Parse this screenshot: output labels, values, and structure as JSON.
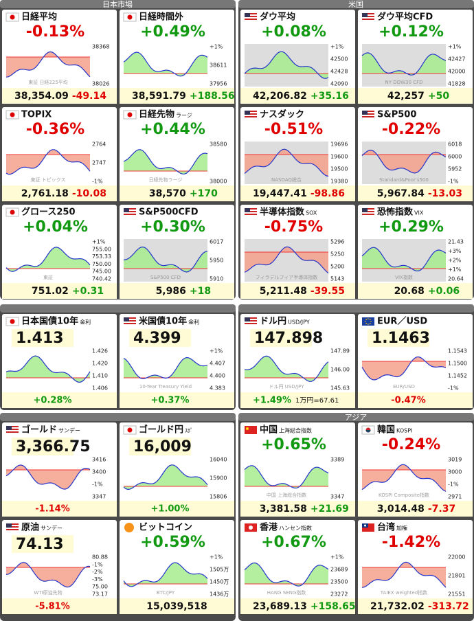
{
  "panels": [
    {
      "title": "日本市場",
      "tiles": [
        {
          "flag": "jp",
          "name": "日経平均",
          "change": "-0.13%",
          "price": "38,354.09",
          "diff": "-49.14",
          "labels": [
            "38368",
            "38026"
          ],
          "mark": "東証 日経225平均"
        },
        {
          "flag": "jp",
          "name": "日経時間外",
          "change": "+0.49%",
          "price": "38,591.79",
          "diff": "+188.56",
          "labels": [
            "+1%",
            "38611",
            "37956"
          ]
        },
        {
          "flag": "jp",
          "name": "TOPIX",
          "change": "-0.36%",
          "price": "2,761.18",
          "diff": "-10.08",
          "labels": [
            "2764",
            "2747",
            "-1%"
          ],
          "mark": "東証 トピックス"
        },
        {
          "flag": "jp",
          "name": "日経先物",
          "sub": "ラージ",
          "change": "+0.44%",
          "price": "38,570",
          "diff": "+170",
          "labels": [
            "38580",
            "38000"
          ],
          "mark": "日経先物ラージ"
        },
        {
          "flag": "jp",
          "name": "グロース250",
          "change": "+0.04%",
          "price": "751.02",
          "diff": "+0.31",
          "labels": [
            "+1%",
            "755.00",
            "753.33",
            "750.00",
            "745.00",
            "740.42"
          ],
          "mark": "東証"
        },
        {
          "flag": "us",
          "name": "S&P500CFD",
          "change": "+0.30%",
          "price": "5,986",
          "diff": "+18",
          "labels": [
            "6017",
            "5950",
            "5910"
          ],
          "mark": "S&P500 CFD"
        }
      ]
    },
    {
      "title": "米国",
      "tiles": [
        {
          "flag": "us",
          "name": "ダウ平均",
          "change": "+0.08%",
          "price": "42,206.82",
          "diff": "+35.16",
          "labels": [
            "+1%",
            "42500",
            "42428",
            "42090"
          ]
        },
        {
          "flag": "us",
          "name": "ダウ平均CFD",
          "change": "+0.12%",
          "price": "42,257",
          "diff": "+50",
          "labels": [
            "+1%",
            "42427",
            "42000",
            "41828"
          ],
          "mark": "NY DOW30 CFD"
        },
        {
          "flag": "us",
          "name": "ナスダック",
          "change": "-0.51%",
          "price": "19,447.41",
          "diff": "-98.86",
          "labels": [
            "19696",
            "19600",
            "19500",
            "19380"
          ],
          "mark": "NASDAQ総合"
        },
        {
          "flag": "us",
          "name": "S&P500",
          "change": "-0.22%",
          "price": "5,967.84",
          "diff": "-13.03",
          "labels": [
            "6018",
            "6000",
            "5952",
            "-1%"
          ],
          "mark": "Standard&Poor's500"
        },
        {
          "flag": "us",
          "name": "半導体指数",
          "sub": "SOX",
          "change": "-0.75%",
          "price": "5,211.48",
          "diff": "-39.55",
          "labels": [
            "5296",
            "5250",
            "5200",
            "5143"
          ],
          "mark": "フィラデルフィア半導体指数"
        },
        {
          "flag": "us",
          "name": "恐怖指数",
          "sub": "VIX",
          "change": "+0.29%",
          "price": "20.68",
          "diff": "+0.06",
          "labels": [
            "21.43",
            "+3%",
            "+2%",
            "+1%",
            "20.64"
          ],
          "mark": "VIX指数"
        }
      ]
    },
    {
      "tiles": [
        {
          "flag": "jp",
          "name": "日本国債10年",
          "sub": "金利",
          "value": "1.413",
          "change": "+0.28%",
          "labels": [
            "1.426",
            "1.420",
            "1.410",
            "1.406"
          ]
        },
        {
          "flag": "us",
          "name": "米国債10年",
          "sub": "金利",
          "value": "4.399",
          "change": "+0.37%",
          "labels": [
            "+1%",
            "4.407",
            "4.400",
            "4.383"
          ],
          "mark": "10-Year Treasury Yield"
        }
      ]
    },
    {
      "tiles": [
        {
          "flag": "us",
          "name": "ドル円",
          "sub": "USD/JPY",
          "value": "147.898",
          "change": "+1.49%",
          "note": "1万円=67.61",
          "labels": [
            "147.89",
            "146.00",
            "145.63"
          ],
          "mark": "ドル円 USD/JPY"
        },
        {
          "flag": "eu",
          "name": "EUR／USD",
          "value": "1.1463",
          "change": "-0.47%",
          "labels": [
            "1.1543",
            "1.1500",
            "1.1452",
            "-1%"
          ],
          "mark": "EUR/USD"
        }
      ]
    },
    {
      "tiles": [
        {
          "flag": "us",
          "name": "ゴールド",
          "sub": "サンデー",
          "value": "3,366.75",
          "change": "-1.14%",
          "labels": [
            "3416",
            "3400",
            "-1%",
            "3347"
          ]
        },
        {
          "flag": "jp",
          "name": "ゴールド円",
          "sub": "ｽﾎﾟ",
          "value": "16,009",
          "change": "+1.00%",
          "labels": [
            "16040",
            "15900",
            "15806"
          ]
        },
        {
          "flag": "us",
          "name": "原油",
          "sub": "サンデー",
          "value": "74.13",
          "change": "-5.81%",
          "labels": [
            "80.88",
            "-1%",
            "-2%",
            "-3%",
            "75.00",
            "73.17"
          ],
          "mark": "WTI原油先物"
        },
        {
          "flag": "btc",
          "name": "ビットコイン",
          "change": "+0.59%",
          "price": "15,039,518",
          "labels": [
            "+1%",
            "1505万",
            "1450万",
            "1436万"
          ],
          "mark": "BTC/JPY"
        }
      ]
    },
    {
      "title": "アジア",
      "tiles": [
        {
          "flag": "cn",
          "name": "中国",
          "sub": "上海総合指数",
          "change": "+0.65%",
          "price": "3,381.58",
          "diff": "+21.69",
          "labels": [
            "3389",
            "3347"
          ],
          "mark": "中国 上海総合指数"
        },
        {
          "flag": "kr",
          "name": "韓国",
          "sub": "KOSPI",
          "change": "-0.24%",
          "price": "3,014.48",
          "diff": "-7.37",
          "labels": [
            "3019",
            "3000",
            "-1%",
            "2971"
          ],
          "mark": "KOSPI Composite指数"
        },
        {
          "flag": "hk",
          "name": "香港",
          "sub": "ハンセン指数",
          "change": "+0.67%",
          "price": "23,689.13",
          "diff": "+158.65",
          "labels": [
            "+1%",
            "23689",
            "23500",
            "23272"
          ],
          "mark": "HANG SENG指数"
        },
        {
          "flag": "tw",
          "name": "台湾",
          "sub": "加権",
          "change": "-1.42%",
          "price": "21,732.02",
          "diff": "-313.72",
          "labels": [
            "22000",
            "21801",
            "21551"
          ],
          "mark": "TAIEX weighted指数"
        }
      ]
    }
  ]
}
